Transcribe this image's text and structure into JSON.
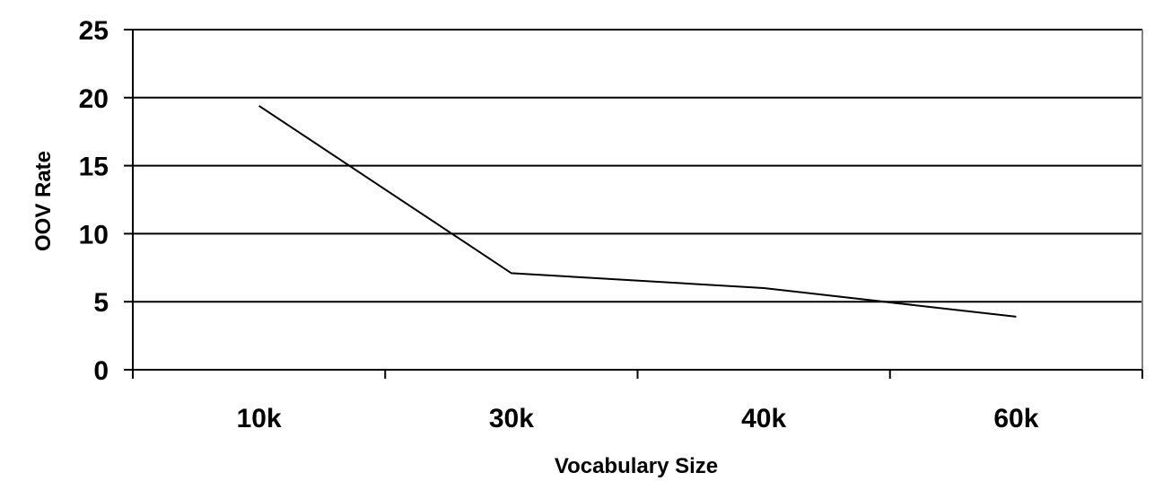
{
  "chart_data": {
    "type": "line",
    "categories": [
      "10k",
      "30k",
      "40k",
      "60k"
    ],
    "series": [
      {
        "values": [
          19.4,
          7.1,
          6.0,
          3.9
        ]
      }
    ],
    "xlabel": "Vocabulary Size",
    "ylabel": "OOV Rate",
    "ylim": [
      0,
      25
    ],
    "yticks": [
      0,
      5,
      10,
      15,
      20,
      25
    ],
    "grid": true,
    "legend": "none",
    "colors": {
      "line": "#000000",
      "grid": "#000000",
      "plot_border": "#808080",
      "background": "#ffffff"
    }
  }
}
